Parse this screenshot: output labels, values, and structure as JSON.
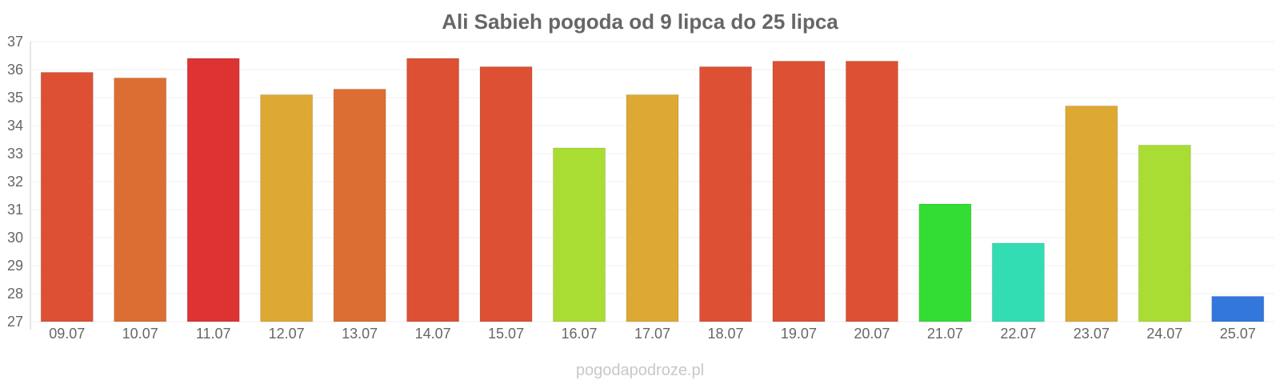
{
  "chart_data": {
    "type": "bar",
    "title": "Ali Sabieh pogoda od 9 lipca do 25 lipca",
    "xlabel": "",
    "ylabel": "",
    "categories": [
      "09.07",
      "10.07",
      "11.07",
      "12.07",
      "13.07",
      "14.07",
      "15.07",
      "16.07",
      "17.07",
      "18.07",
      "19.07",
      "20.07",
      "21.07",
      "22.07",
      "23.07",
      "24.07",
      "25.07"
    ],
    "values": [
      35.9,
      35.7,
      36.4,
      35.1,
      35.3,
      36.4,
      36.1,
      33.2,
      35.1,
      36.1,
      36.3,
      36.3,
      31.2,
      29.8,
      34.7,
      33.3,
      27.9
    ],
    "colors": [
      "#dd5033",
      "#dd6e33",
      "#dd3333",
      "#dda933",
      "#dd6e33",
      "#dd5033",
      "#dd5033",
      "#aadd33",
      "#dda933",
      "#dd5033",
      "#dd5033",
      "#dd5033",
      "#33dd33",
      "#33ddb3",
      "#dda933",
      "#aadd33",
      "#3377dd"
    ],
    "ylim": [
      27,
      37
    ],
    "yticks": [
      27,
      28,
      29,
      30,
      31,
      32,
      33,
      34,
      35,
      36,
      37
    ],
    "grid": true,
    "legend": "none"
  },
  "watermark": "pogodapodroze.pl"
}
